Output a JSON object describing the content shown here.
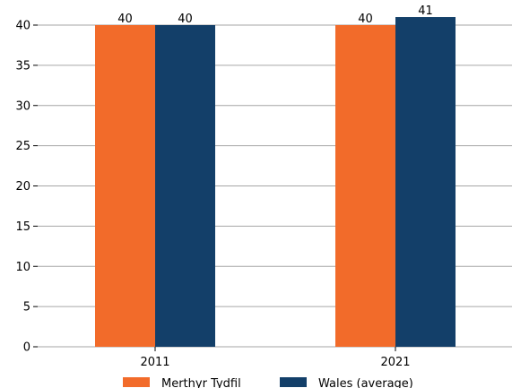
{
  "chart_data": {
    "type": "bar",
    "categories": [
      "2011",
      "2021"
    ],
    "series": [
      {
        "name": "Merthyr Tydfil",
        "values": [
          40,
          40
        ],
        "color": "#f26b2a"
      },
      {
        "name": "Wales (average)",
        "values": [
          40,
          41
        ],
        "color": "#133f69"
      }
    ],
    "yticks": [
      0,
      5,
      10,
      15,
      20,
      25,
      30,
      35,
      40
    ],
    "ylim": [
      0,
      41
    ],
    "title": "",
    "xlabel": "",
    "ylabel": "",
    "grid": true,
    "gridline_color": "#a6a6a6",
    "legend_position": "bottom-center",
    "data_labels": true
  }
}
